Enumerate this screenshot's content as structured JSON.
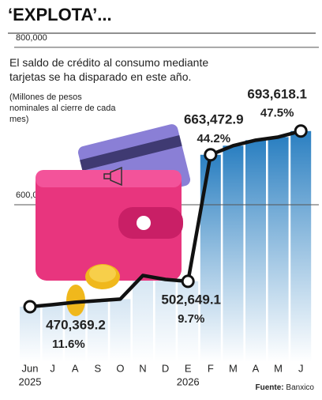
{
  "chart_data": {
    "type": "line",
    "title": "‘EXPLOTA’...",
    "subtitle": "El saldo de crédito al consumo mediante tarjetas se ha disparado en este año.",
    "note": "(Millones de pesos nominales al cierre de cada mes)",
    "source_label": "Fuente:",
    "source": "Banxico",
    "categories": [
      "Jun",
      "J",
      "A",
      "S",
      "O",
      "N",
      "D",
      "E",
      "F",
      "M",
      "A",
      "M",
      "J"
    ],
    "year_labels": [
      "2025",
      null,
      null,
      null,
      null,
      null,
      null,
      "2026",
      null,
      null,
      null,
      null,
      null
    ],
    "series": [
      {
        "color": "#111111",
        "values": [
          470369.2,
          473000,
          476000,
          478000,
          480000,
          510000,
          505000,
          502649.1,
          663472.9,
          675000,
          682000,
          686000,
          693618.1
        ],
        "value_labels": [
          "470,369.2",
          null,
          null,
          null,
          null,
          null,
          null,
          "502,649.1",
          "663,472.9",
          null,
          null,
          null,
          "693,618.1"
        ],
        "change_labels": [
          "11.6%",
          null,
          null,
          null,
          null,
          null,
          null,
          "9.7%",
          "44.2%",
          null,
          null,
          null,
          "47.5%"
        ]
      }
    ],
    "ylim": [
      400000,
      820000
    ],
    "yticks": [
      {
        "value": 600000,
        "label": "600,000"
      },
      {
        "value": 800000,
        "label": "800,000"
      }
    ],
    "grid": true
  }
}
